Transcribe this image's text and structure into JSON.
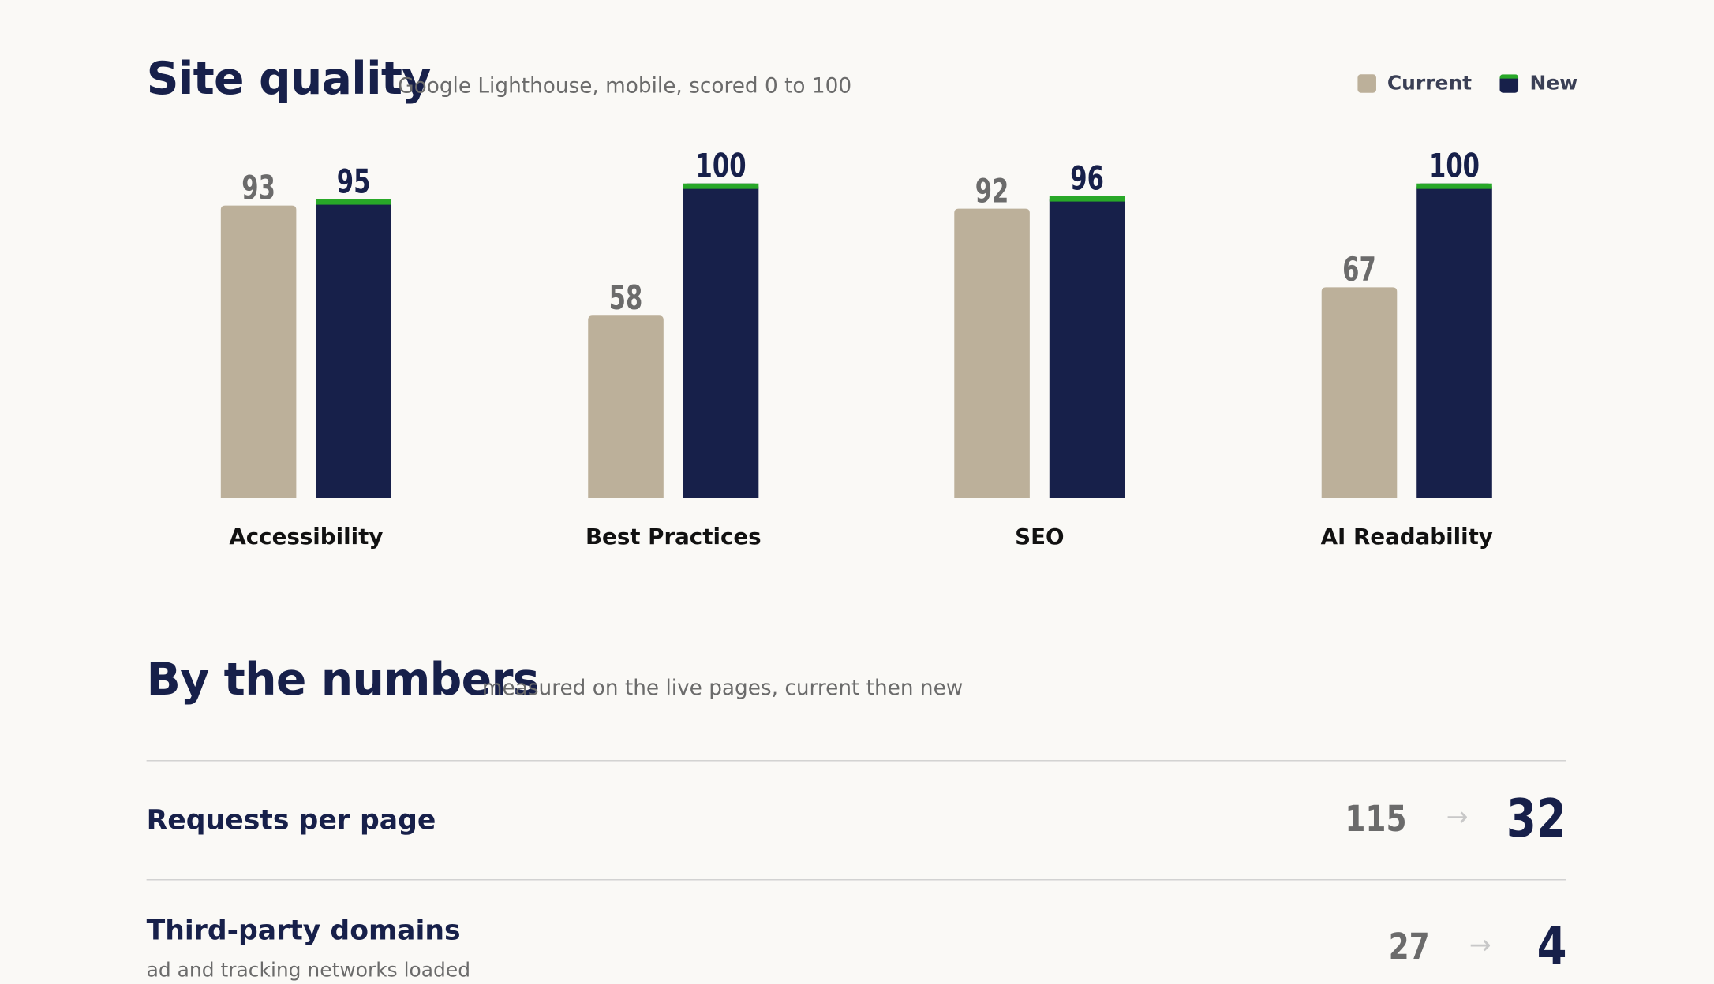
{
  "site_quality": {
    "title": "Site quality",
    "subtitle": "Google Lighthouse, mobile, scored 0 to 100",
    "legend": [
      {
        "label": "Current",
        "color": "#bcb09a"
      },
      {
        "label": "New",
        "color": "#17204a",
        "accent": "#28a828"
      }
    ]
  },
  "chart_data": {
    "type": "bar",
    "title": "Site quality",
    "subtitle": "Google Lighthouse, mobile, scored 0 to 100",
    "categories": [
      "Accessibility",
      "Best Practices",
      "SEO",
      "AI Readability"
    ],
    "series": [
      {
        "name": "Current",
        "values": [
          93,
          58,
          92,
          67
        ],
        "color": "#bcb09a"
      },
      {
        "name": "New",
        "values": [
          95,
          100,
          96,
          100
        ],
        "color": "#17204a"
      }
    ],
    "ylim": [
      0,
      100
    ],
    "xlabel": "",
    "ylabel": "",
    "grid": false,
    "legend_position": "top-right"
  },
  "by_numbers": {
    "title": "By the numbers",
    "subtitle": "measured on the live pages, current then new",
    "arrow": "→",
    "rows": [
      {
        "label": "Requests per page",
        "sub": "",
        "current": "115",
        "new": "32"
      },
      {
        "label": "Third-party domains",
        "sub": "ad and tracking networks loaded",
        "current": "27",
        "new": "4"
      }
    ]
  }
}
